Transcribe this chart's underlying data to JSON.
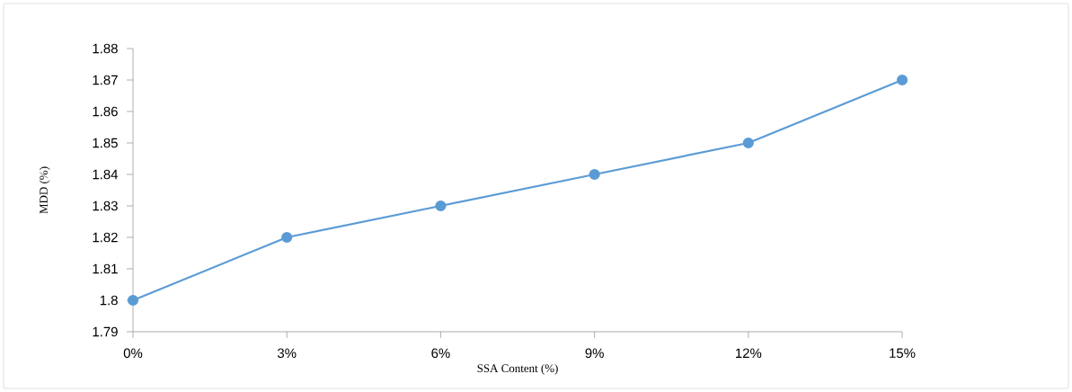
{
  "chart_data": {
    "type": "line",
    "xlabel": "SSA Content (%)",
    "ylabel": "MDD (%)",
    "categories": [
      "0%",
      "3%",
      "6%",
      "9%",
      "12%",
      "15%"
    ],
    "series": [
      {
        "color": "#5b9bd5",
        "values": [
          1.8,
          1.82,
          1.83,
          1.84,
          1.85,
          1.87
        ]
      }
    ],
    "ylim": [
      1.79,
      1.88
    ],
    "yticks": [
      1.79,
      1.8,
      1.81,
      1.82,
      1.83,
      1.84,
      1.85,
      1.86,
      1.87,
      1.88
    ],
    "marker": "circle",
    "line_style": "solid"
  }
}
